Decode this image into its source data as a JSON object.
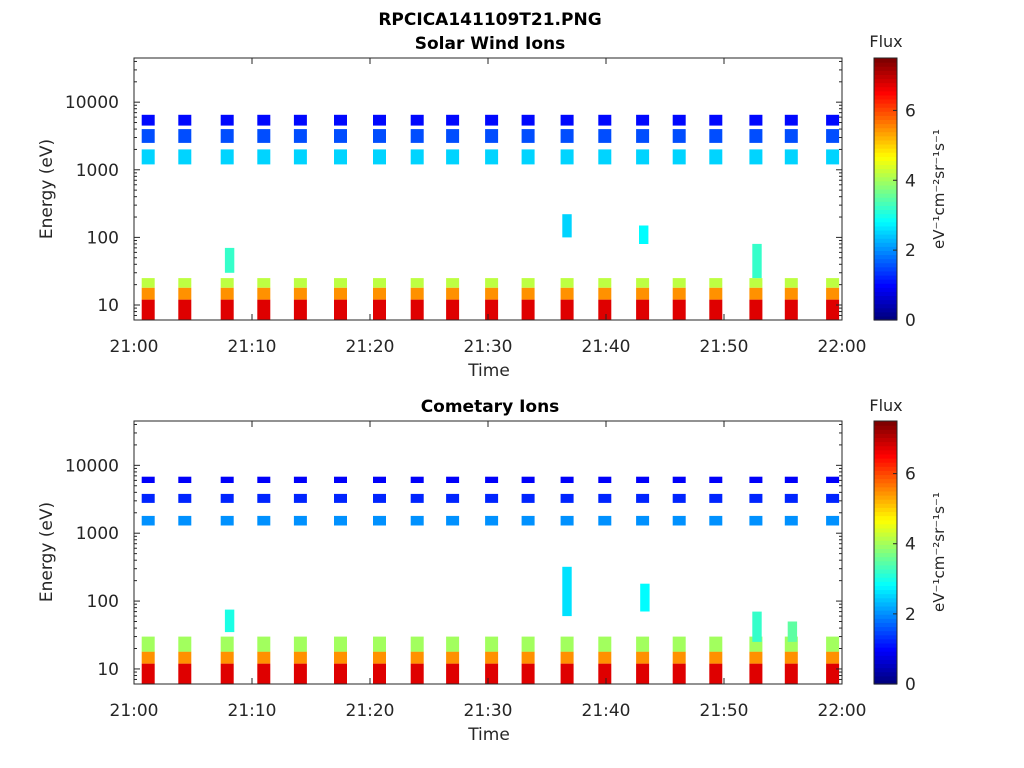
{
  "figure": {
    "title": "RPCICA141109T21.PNG"
  },
  "colorbar": {
    "label": "Flux",
    "unit_label": "eV⁻¹cm⁻²sr⁻¹s⁻¹",
    "ticks": [
      "0",
      "2",
      "4",
      "6"
    ],
    "range": [
      0,
      7.5
    ]
  },
  "chart_data": [
    {
      "type": "heatmap",
      "title": "Solar Wind Ions",
      "xlabel": "Time",
      "ylabel": "Energy (eV)",
      "y_scale": "log",
      "ylim": [
        6,
        45000
      ],
      "xlim": [
        "21:00",
        "22:00"
      ],
      "x_ticks": [
        "21:00",
        "21:10",
        "21:20",
        "21:30",
        "21:40",
        "21:50",
        "22:00"
      ],
      "y_ticks": [
        "10",
        "100",
        "1000",
        "10000"
      ],
      "clim": [
        0,
        7.5
      ],
      "scan_minutes": [
        1.2,
        4.3,
        7.9,
        11.0,
        14.1,
        17.5,
        20.8,
        24.0,
        27.0,
        30.3,
        33.4,
        36.7,
        39.9,
        43.1,
        46.2,
        49.3,
        52.7,
        55.7,
        59.2
      ],
      "bands": [
        {
          "e_min": 6,
          "e_max": 12,
          "flux": 6.8
        },
        {
          "e_min": 12,
          "e_max": 18,
          "flux": 5.5
        },
        {
          "e_min": 18,
          "e_max": 25,
          "flux": 4.2
        },
        {
          "e_min": 1200,
          "e_max": 2000,
          "flux": 2.5
        },
        {
          "e_min": 2500,
          "e_max": 4000,
          "flux": 1.5
        },
        {
          "e_min": 4500,
          "e_max": 6500,
          "flux": 1.0
        }
      ],
      "features": [
        {
          "t": 36.7,
          "e_min": 100,
          "e_max": 220,
          "flux": 2.5
        },
        {
          "t": 8.1,
          "e_min": 30,
          "e_max": 70,
          "flux": 3.2
        },
        {
          "t": 52.8,
          "e_min": 25,
          "e_max": 80,
          "flux": 3.2
        },
        {
          "t": 43.2,
          "e_min": 80,
          "e_max": 150,
          "flux": 2.8
        }
      ]
    },
    {
      "type": "heatmap",
      "title": "Cometary Ions",
      "xlabel": "Time",
      "ylabel": "Energy (eV)",
      "y_scale": "log",
      "ylim": [
        6,
        45000
      ],
      "xlim": [
        "21:00",
        "22:00"
      ],
      "x_ticks": [
        "21:00",
        "21:10",
        "21:20",
        "21:30",
        "21:40",
        "21:50",
        "22:00"
      ],
      "y_ticks": [
        "10",
        "100",
        "1000",
        "10000"
      ],
      "clim": [
        0,
        7.5
      ],
      "scan_minutes": [
        1.2,
        4.3,
        7.9,
        11.0,
        14.1,
        17.5,
        20.8,
        24.0,
        27.0,
        30.3,
        33.4,
        36.7,
        39.9,
        43.1,
        46.2,
        49.3,
        52.7,
        55.7,
        59.2
      ],
      "bands": [
        {
          "e_min": 6,
          "e_max": 12,
          "flux": 6.8
        },
        {
          "e_min": 12,
          "e_max": 18,
          "flux": 5.5
        },
        {
          "e_min": 18,
          "e_max": 30,
          "flux": 4.0
        },
        {
          "e_min": 1300,
          "e_max": 1800,
          "flux": 2.0
        },
        {
          "e_min": 2800,
          "e_max": 3800,
          "flux": 1.2
        },
        {
          "e_min": 5500,
          "e_max": 6800,
          "flux": 0.9
        }
      ],
      "features": [
        {
          "t": 36.7,
          "e_min": 60,
          "e_max": 320,
          "flux": 2.6
        },
        {
          "t": 8.1,
          "e_min": 35,
          "e_max": 75,
          "flux": 3.0
        },
        {
          "t": 43.3,
          "e_min": 70,
          "e_max": 180,
          "flux": 2.8
        },
        {
          "t": 52.8,
          "e_min": 25,
          "e_max": 70,
          "flux": 3.2
        },
        {
          "t": 55.8,
          "e_min": 25,
          "e_max": 50,
          "flux": 3.5
        }
      ]
    }
  ]
}
